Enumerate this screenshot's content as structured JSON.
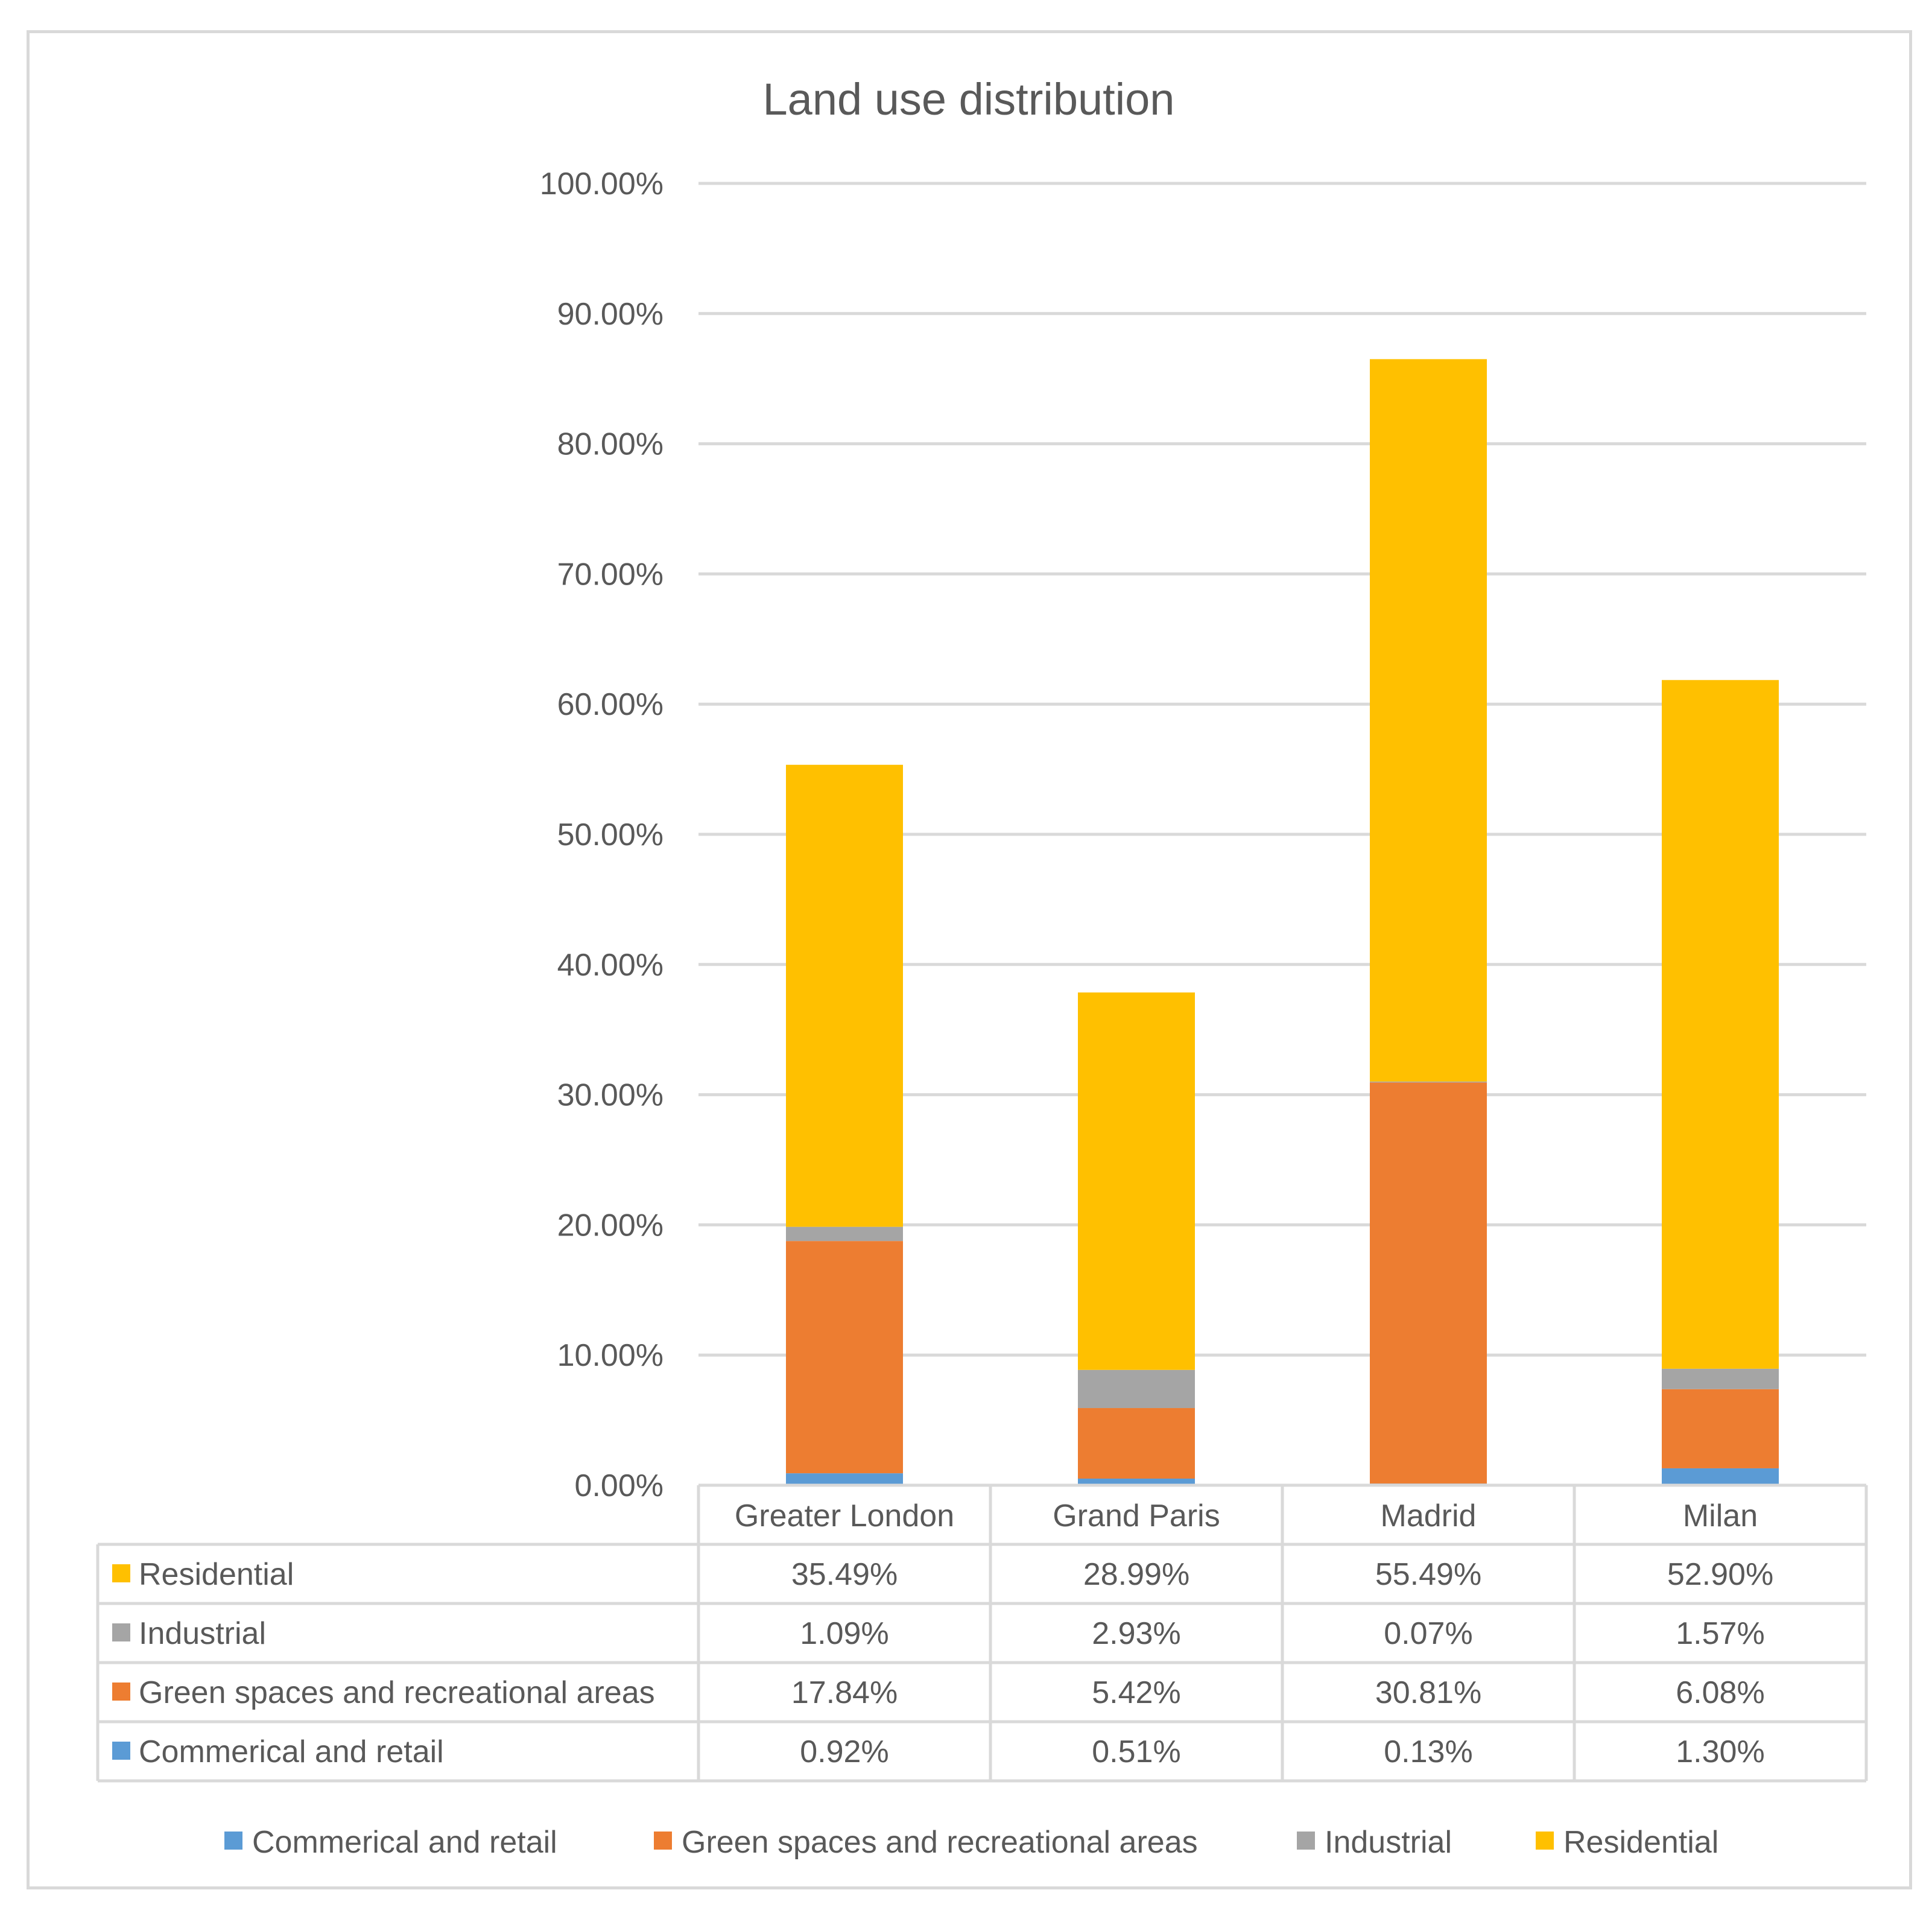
{
  "chart_data": {
    "type": "bar",
    "stacked": true,
    "title": "Land use distribution",
    "xlabel": "",
    "ylabel": "",
    "ylim": [
      0,
      100
    ],
    "yticks": [
      "0.00%",
      "10.00%",
      "20.00%",
      "30.00%",
      "40.00%",
      "50.00%",
      "60.00%",
      "70.00%",
      "80.00%",
      "90.00%",
      "100.00%"
    ],
    "categories": [
      "Greater London",
      "Grand Paris",
      "Madrid",
      "Milan"
    ],
    "series": [
      {
        "name": "Commerical and retail",
        "color": "#5b9bd5",
        "values": [
          0.92,
          0.51,
          0.13,
          1.3
        ],
        "labels": [
          "0.92%",
          "0.51%",
          "0.13%",
          "1.30%"
        ]
      },
      {
        "name": "Green spaces and recreational areas",
        "color": "#ed7d31",
        "values": [
          17.84,
          5.42,
          30.81,
          6.08
        ],
        "labels": [
          "17.84%",
          "5.42%",
          "30.81%",
          "6.08%"
        ]
      },
      {
        "name": "Industrial",
        "color": "#a5a5a5",
        "values": [
          1.09,
          2.93,
          0.07,
          1.57
        ],
        "labels": [
          "1.09%",
          "2.93%",
          "0.07%",
          "1.57%"
        ]
      },
      {
        "name": "Residential",
        "color": "#ffc000",
        "values": [
          35.49,
          28.99,
          55.49,
          52.9
        ],
        "labels": [
          "35.49%",
          "28.99%",
          "55.49%",
          "52.90%"
        ]
      }
    ],
    "data_table": {
      "row_order": [
        "Residential",
        "Industrial",
        "Green spaces and recreational areas",
        "Commerical and retail"
      ]
    },
    "legend": {
      "position": "bottom",
      "order": [
        "Commerical and retail",
        "Green spaces and recreational areas",
        "Industrial",
        "Residential"
      ]
    },
    "grid": true
  }
}
